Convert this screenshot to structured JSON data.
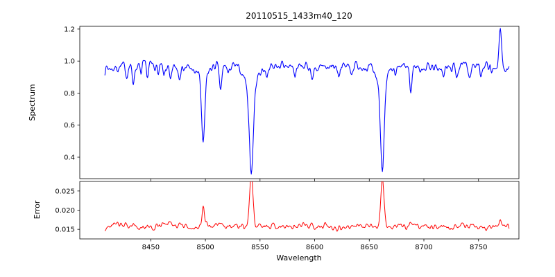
{
  "chart_data": {
    "type": "line",
    "title": "20110515_1433m40_120",
    "xlabel": "Wavelength",
    "seed": 7,
    "x_axis": {
      "range": [
        8385,
        8787
      ],
      "data_range": [
        8408,
        8778
      ],
      "ticks": [
        {
          "value": 8450,
          "label": "8450"
        },
        {
          "value": 8500,
          "label": "8500"
        },
        {
          "value": 8550,
          "label": "8550"
        },
        {
          "value": 8600,
          "label": "8600"
        },
        {
          "value": 8650,
          "label": "8650"
        },
        {
          "value": 8700,
          "label": "8700"
        },
        {
          "value": 8750,
          "label": "8750"
        }
      ]
    },
    "subplots": [
      {
        "id": "spectrum",
        "ylabel": "Spectrum",
        "line_color": "#0000ff",
        "ylim": [
          0.266,
          1.217
        ],
        "ticks": [
          {
            "value": 0.4,
            "label": "0.4"
          },
          {
            "value": 0.6,
            "label": "0.6"
          },
          {
            "value": 0.8,
            "label": "0.8"
          },
          {
            "value": 1.0,
            "label": "1.0"
          },
          {
            "value": 1.2,
            "label": "1.2"
          }
        ],
        "continuum": 0.965,
        "noise_sigma": 0.012,
        "wiggles": [
          {
            "amp": 0.006,
            "period": 62,
            "phase": 0.0
          },
          {
            "amp": 0.004,
            "period": 24,
            "phase": 1.3
          }
        ],
        "absorption_lines": [
          {
            "c": 8428,
            "d": 0.05,
            "w": 0.9
          },
          {
            "c": 8434,
            "d": 0.09,
            "w": 1.0
          },
          {
            "c": 8441,
            "d": 0.05,
            "w": 0.8
          },
          {
            "c": 8447,
            "d": 0.07,
            "w": 0.9
          },
          {
            "c": 8457,
            "d": 0.05,
            "w": 0.8
          },
          {
            "c": 8462,
            "d": 0.06,
            "w": 0.9
          },
          {
            "c": 8468,
            "d": 0.1,
            "w": 1.0
          },
          {
            "c": 8476,
            "d": 0.05,
            "w": 0.8
          },
          {
            "c": 8490,
            "d": 0.04,
            "w": 0.8
          },
          {
            "c": 8498,
            "d": 0.42,
            "w": 1.4
          },
          {
            "c": 8498,
            "d": 0.08,
            "w": 4.0
          },
          {
            "c": 8514,
            "d": 0.15,
            "w": 1.2
          },
          {
            "c": 8521,
            "d": 0.06,
            "w": 0.9
          },
          {
            "c": 8542,
            "d": 0.52,
            "w": 1.8
          },
          {
            "c": 8542,
            "d": 0.13,
            "w": 5.0
          },
          {
            "c": 8556,
            "d": 0.05,
            "w": 0.9
          },
          {
            "c": 8572,
            "d": 0.04,
            "w": 0.8
          },
          {
            "c": 8582,
            "d": 0.06,
            "w": 0.9
          },
          {
            "c": 8598,
            "d": 0.07,
            "w": 1.0
          },
          {
            "c": 8611,
            "d": 0.04,
            "w": 0.8
          },
          {
            "c": 8622,
            "d": 0.05,
            "w": 0.9
          },
          {
            "c": 8634,
            "d": 0.04,
            "w": 0.8
          },
          {
            "c": 8648,
            "d": 0.05,
            "w": 0.9
          },
          {
            "c": 8662,
            "d": 0.5,
            "w": 1.7
          },
          {
            "c": 8662,
            "d": 0.12,
            "w": 4.5
          },
          {
            "c": 8674,
            "d": 0.06,
            "w": 0.9
          },
          {
            "c": 8688,
            "d": 0.16,
            "w": 1.1
          },
          {
            "c": 8697,
            "d": 0.05,
            "w": 0.8
          },
          {
            "c": 8713,
            "d": 0.05,
            "w": 0.9
          },
          {
            "c": 8718,
            "d": 0.07,
            "w": 0.9
          },
          {
            "c": 8730,
            "d": 0.04,
            "w": 0.8
          },
          {
            "c": 8742,
            "d": 0.05,
            "w": 0.9
          },
          {
            "c": 8752,
            "d": 0.05,
            "w": 0.8
          },
          {
            "c": 8762,
            "d": 0.06,
            "w": 0.9
          }
        ],
        "emission_lines": [
          {
            "c": 8770,
            "h": 0.22,
            "w": 1.1
          }
        ]
      },
      {
        "id": "error",
        "ylabel": "Error",
        "line_color": "#ff0000",
        "ylim": [
          0.0125,
          0.0275
        ],
        "ticks": [
          {
            "value": 0.015,
            "label": "0.015"
          },
          {
            "value": 0.02,
            "label": "0.020"
          },
          {
            "value": 0.025,
            "label": "0.025"
          }
        ],
        "baseline": 0.0158,
        "noise_sigma": 0.00035,
        "wiggles": [
          {
            "amp": 0.00025,
            "period": 45,
            "phase": 0.7
          }
        ],
        "peaks": [
          {
            "c": 8434,
            "h": 0.0006,
            "w": 0.9
          },
          {
            "c": 8468,
            "h": 0.0005,
            "w": 0.9
          },
          {
            "c": 8498,
            "h": 0.005,
            "w": 1.1
          },
          {
            "c": 8514,
            "h": 0.0008,
            "w": 0.9
          },
          {
            "c": 8542,
            "h": 0.0135,
            "w": 1.5
          },
          {
            "c": 8598,
            "h": 0.0004,
            "w": 0.8
          },
          {
            "c": 8662,
            "h": 0.013,
            "w": 1.4
          },
          {
            "c": 8688,
            "h": 0.001,
            "w": 0.9
          },
          {
            "c": 8718,
            "h": 0.0005,
            "w": 0.8
          },
          {
            "c": 8770,
            "h": 0.0014,
            "w": 1.0
          }
        ]
      }
    ]
  }
}
